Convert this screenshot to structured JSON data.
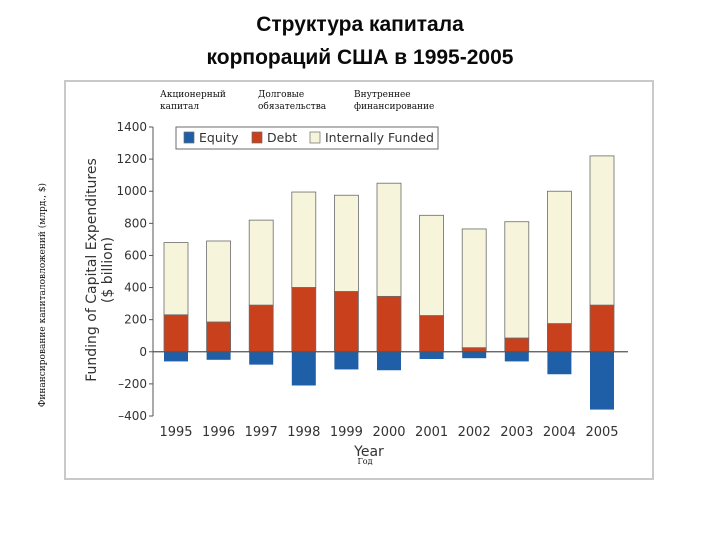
{
  "slide": {
    "title_line1": "Структура капитала",
    "title_line2": "корпораций США в 1995-2005"
  },
  "russian_labels": {
    "legend_equity": "Акционерный капитал",
    "legend_debt": "Долговые обязательства",
    "legend_internal": "Внутреннее финансирование",
    "x_axis": "Год",
    "y_axis": "Финансирование капиталовложений (млрд., $)"
  },
  "colors": {
    "equity": "#1f5fa8",
    "debt": "#c8401c",
    "internal": "#f7f4dc",
    "bar_outline": "#6b6b6b"
  },
  "chart_data": {
    "type": "bar",
    "stacked": true,
    "categories": [
      "1995",
      "1996",
      "1997",
      "1998",
      "1999",
      "2000",
      "2001",
      "2002",
      "2003",
      "2004",
      "2005"
    ],
    "series": [
      {
        "name": "Equity",
        "values": [
          -60,
          -50,
          -80,
          -210,
          -110,
          -115,
          -45,
          -40,
          -60,
          -140,
          -360
        ]
      },
      {
        "name": "Debt",
        "values": [
          230,
          185,
          290,
          400,
          375,
          345,
          225,
          25,
          85,
          175,
          290
        ]
      },
      {
        "name": "Internally Funded",
        "values": [
          450,
          505,
          530,
          595,
          600,
          705,
          625,
          740,
          725,
          825,
          930
        ]
      }
    ],
    "xlabel": "Year",
    "ylabel": "Funding of Capital Expenditures ($ billion)",
    "ylim": [
      -400,
      1400
    ],
    "yticks": [
      -400,
      -200,
      0,
      200,
      400,
      600,
      800,
      1000,
      1200,
      1400
    ],
    "ytick_labels": [
      "–400",
      "–200",
      "0",
      "200",
      "400",
      "600",
      "800",
      "1000",
      "1200",
      "1400"
    ],
    "legend_position": "top-left",
    "grid": false
  }
}
